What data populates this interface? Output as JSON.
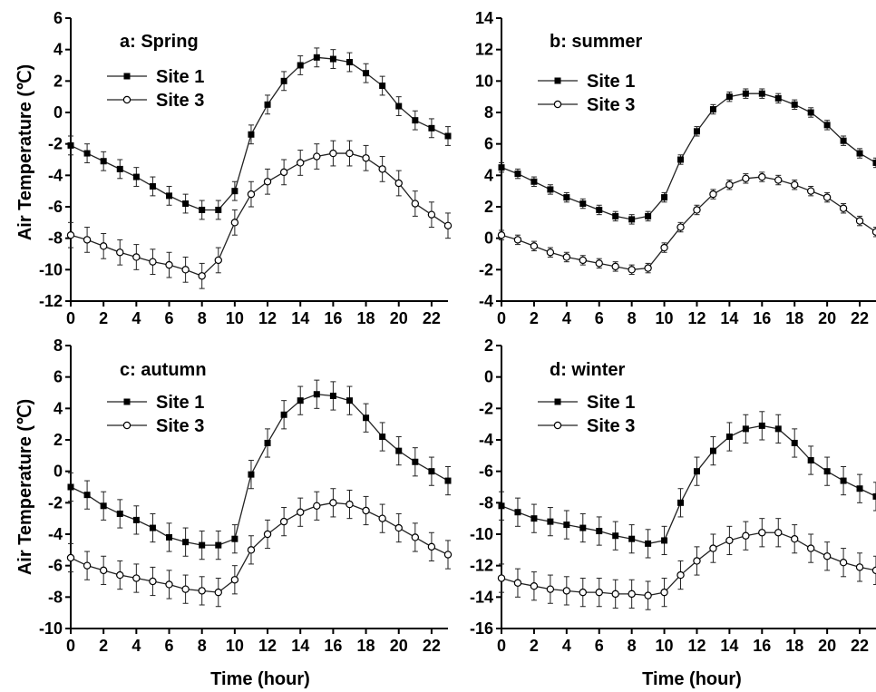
{
  "figure": {
    "ylabel": "Air Temperature (℃)",
    "xlabel": "Time (hour)"
  },
  "chart_data": [
    {
      "type": "line",
      "title": "a: Spring",
      "xlabel": "",
      "ylabel": "Air Temperature (℃)",
      "xlim": [
        0,
        23
      ],
      "ylim": [
        -12,
        6
      ],
      "xticks": [
        0,
        2,
        4,
        6,
        8,
        10,
        12,
        14,
        16,
        18,
        20,
        22
      ],
      "yticks": [
        -12,
        -10,
        -8,
        -6,
        -4,
        -2,
        0,
        2,
        4,
        6
      ],
      "x": [
        0,
        1,
        2,
        3,
        4,
        5,
        6,
        7,
        8,
        9,
        10,
        11,
        12,
        13,
        14,
        15,
        16,
        17,
        18,
        19,
        20,
        21,
        22,
        23
      ],
      "series": [
        {
          "name": "Site 1",
          "marker": "square-filled",
          "error": 0.6,
          "values": [
            -2.1,
            -2.6,
            -3.1,
            -3.6,
            -4.1,
            -4.7,
            -5.3,
            -5.8,
            -6.2,
            -6.2,
            -5.0,
            -1.4,
            0.5,
            2.0,
            3.0,
            3.5,
            3.4,
            3.2,
            2.5,
            1.7,
            0.4,
            -0.5,
            -1.0,
            -1.5
          ]
        },
        {
          "name": "Site 3",
          "marker": "circle-open",
          "error": 0.8,
          "values": [
            -7.8,
            -8.1,
            -8.5,
            -8.9,
            -9.2,
            -9.5,
            -9.7,
            -10.0,
            -10.4,
            -9.4,
            -7.0,
            -5.2,
            -4.4,
            -3.8,
            -3.2,
            -2.8,
            -2.6,
            -2.6,
            -2.9,
            -3.6,
            -4.5,
            -5.8,
            -6.5,
            -7.2
          ]
        }
      ]
    },
    {
      "type": "line",
      "title": "b: summer",
      "xlabel": "",
      "ylabel": "",
      "xlim": [
        0,
        23
      ],
      "ylim": [
        -4,
        14
      ],
      "xticks": [
        0,
        2,
        4,
        6,
        8,
        10,
        12,
        14,
        16,
        18,
        20,
        22
      ],
      "yticks": [
        -4,
        -2,
        0,
        2,
        4,
        6,
        8,
        10,
        12,
        14
      ],
      "x": [
        0,
        1,
        2,
        3,
        4,
        5,
        6,
        7,
        8,
        9,
        10,
        11,
        12,
        13,
        14,
        15,
        16,
        17,
        18,
        19,
        20,
        21,
        22,
        23
      ],
      "series": [
        {
          "name": "Site 1",
          "marker": "square-filled",
          "error": 0.3,
          "values": [
            4.5,
            4.1,
            3.6,
            3.1,
            2.6,
            2.2,
            1.8,
            1.4,
            1.2,
            1.4,
            2.6,
            5.0,
            6.8,
            8.2,
            9.0,
            9.2,
            9.2,
            8.9,
            8.5,
            8.0,
            7.2,
            6.2,
            5.4,
            4.8
          ]
        },
        {
          "name": "Site 3",
          "marker": "circle-open",
          "error": 0.3,
          "values": [
            0.2,
            -0.1,
            -0.5,
            -0.9,
            -1.2,
            -1.4,
            -1.6,
            -1.8,
            -2.0,
            -1.9,
            -0.6,
            0.7,
            1.8,
            2.8,
            3.4,
            3.8,
            3.9,
            3.7,
            3.4,
            3.0,
            2.6,
            1.9,
            1.1,
            0.4
          ]
        }
      ]
    },
    {
      "type": "line",
      "title": "c: autumn",
      "xlabel": "Time (hour)",
      "ylabel": "Air Temperature (℃)",
      "xlim": [
        0,
        23
      ],
      "ylim": [
        -10,
        8
      ],
      "xticks": [
        0,
        2,
        4,
        6,
        8,
        10,
        12,
        14,
        16,
        18,
        20,
        22
      ],
      "yticks": [
        -10,
        -8,
        -6,
        -4,
        -2,
        0,
        2,
        4,
        6,
        8
      ],
      "x": [
        0,
        1,
        2,
        3,
        4,
        5,
        6,
        7,
        8,
        9,
        10,
        11,
        12,
        13,
        14,
        15,
        16,
        17,
        18,
        19,
        20,
        21,
        22,
        23
      ],
      "series": [
        {
          "name": "Site 1",
          "marker": "square-filled",
          "error": 0.9,
          "values": [
            -1.0,
            -1.5,
            -2.2,
            -2.7,
            -3.1,
            -3.6,
            -4.2,
            -4.5,
            -4.7,
            -4.7,
            -4.3,
            -0.2,
            1.8,
            3.6,
            4.5,
            4.9,
            4.8,
            4.5,
            3.4,
            2.2,
            1.3,
            0.6,
            0.0,
            -0.6
          ]
        },
        {
          "name": "Site 3",
          "marker": "circle-open",
          "error": 0.9,
          "values": [
            -5.5,
            -6.0,
            -6.3,
            -6.6,
            -6.8,
            -7.0,
            -7.2,
            -7.5,
            -7.6,
            -7.7,
            -6.9,
            -5.0,
            -4.0,
            -3.2,
            -2.6,
            -2.2,
            -2.0,
            -2.1,
            -2.5,
            -3.0,
            -3.6,
            -4.2,
            -4.8,
            -5.3
          ]
        }
      ]
    },
    {
      "type": "line",
      "title": "d: winter",
      "xlabel": "Time (hour)",
      "ylabel": "",
      "xlim": [
        0,
        23
      ],
      "ylim": [
        -16,
        2
      ],
      "xticks": [
        0,
        2,
        4,
        6,
        8,
        10,
        12,
        14,
        16,
        18,
        20,
        22
      ],
      "yticks": [
        -16,
        -14,
        -12,
        -10,
        -8,
        -6,
        -4,
        -2,
        0,
        2
      ],
      "x": [
        0,
        1,
        2,
        3,
        4,
        5,
        6,
        7,
        8,
        9,
        10,
        11,
        12,
        13,
        14,
        15,
        16,
        17,
        18,
        19,
        20,
        21,
        22,
        23
      ],
      "series": [
        {
          "name": "Site 1",
          "marker": "square-filled",
          "error": 0.9,
          "values": [
            -8.2,
            -8.6,
            -9.0,
            -9.2,
            -9.4,
            -9.6,
            -9.8,
            -10.1,
            -10.3,
            -10.6,
            -10.4,
            -8.0,
            -6.0,
            -4.7,
            -3.8,
            -3.3,
            -3.1,
            -3.3,
            -4.2,
            -5.3,
            -6.0,
            -6.6,
            -7.1,
            -7.6
          ]
        },
        {
          "name": "Site 3",
          "marker": "circle-open",
          "error": 0.9,
          "values": [
            -12.8,
            -13.1,
            -13.3,
            -13.5,
            -13.6,
            -13.7,
            -13.7,
            -13.8,
            -13.8,
            -13.9,
            -13.7,
            -12.6,
            -11.7,
            -10.9,
            -10.4,
            -10.1,
            -9.9,
            -9.9,
            -10.3,
            -10.9,
            -11.4,
            -11.8,
            -12.1,
            -12.3
          ]
        }
      ]
    }
  ]
}
